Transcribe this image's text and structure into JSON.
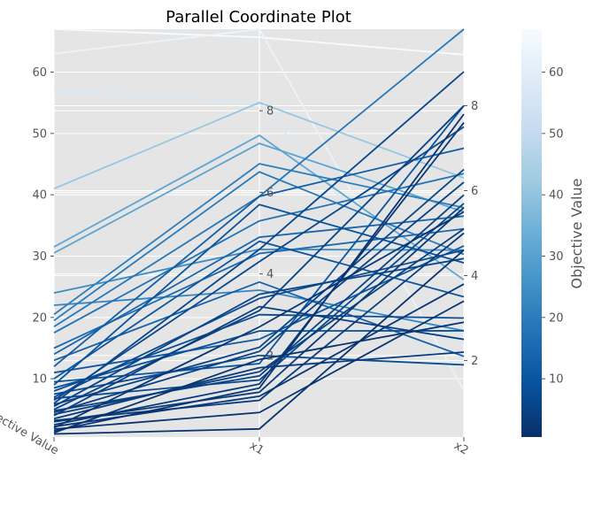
{
  "chart_data": {
    "type": "parallel_coordinates",
    "title": "Parallel Coordinate Plot",
    "axes": [
      {
        "name": "Objective Value",
        "range": [
          0.5,
          67
        ],
        "ticks": [
          10,
          20,
          30,
          40,
          50,
          60
        ],
        "tick_labels_side": "left"
      },
      {
        "name": "x1",
        "range": [
          0,
          10
        ],
        "ticks": [
          2,
          4,
          6,
          8
        ],
        "tick_labels_side": "right"
      },
      {
        "name": "x2",
        "range": [
          0.2,
          9.8
        ],
        "ticks": [
          2,
          4,
          6,
          8
        ],
        "tick_labels_side": "right"
      }
    ],
    "colorbar": {
      "label": "Objective Value",
      "range": [
        0.5,
        67
      ],
      "ticks": [
        10,
        20,
        30,
        40,
        50,
        60
      ],
      "colormap": "Blues_r"
    },
    "background": "#e5e5e5",
    "grid": true,
    "lines": [
      [
        67.0,
        9.8,
        9.2
      ],
      [
        63.0,
        10.0,
        1.3
      ],
      [
        57.0,
        8.2,
        2.4
      ],
      [
        41.0,
        8.2,
        6.3
      ],
      [
        31.5,
        7.4,
        3.9
      ],
      [
        30.5,
        7.2,
        5.5
      ],
      [
        24.0,
        4.6,
        4.6
      ],
      [
        22.0,
        3.6,
        2.7
      ],
      [
        20.5,
        6.7,
        5.6
      ],
      [
        19.5,
        6.5,
        4.5
      ],
      [
        18.5,
        5.9,
        9.8
      ],
      [
        17.5,
        5.3,
        6.4
      ],
      [
        15.0,
        4.5,
        5.1
      ],
      [
        14.0,
        4.9,
        5.4
      ],
      [
        13.0,
        3.8,
        2.1
      ],
      [
        12.0,
        5.9,
        7.0
      ],
      [
        10.0,
        4.8,
        3.5
      ],
      [
        9.0,
        5.7,
        4.3
      ],
      [
        8.0,
        3.0,
        3.0
      ],
      [
        7.0,
        3.4,
        4.6
      ],
      [
        6.5,
        4.3,
        7.5
      ],
      [
        6.0,
        4.6,
        8.8
      ],
      [
        5.5,
        3.5,
        4.4
      ],
      [
        5.0,
        3.1,
        8.0
      ],
      [
        4.5,
        2.1,
        6.2
      ],
      [
        4.0,
        3.2,
        2.5
      ],
      [
        3.5,
        1.7,
        2.2
      ],
      [
        3.0,
        1.1,
        5.6
      ],
      [
        2.5,
        1.3,
        7.6
      ],
      [
        2.0,
        2.7,
        5.5
      ],
      [
        1.8,
        0.6,
        3.4
      ],
      [
        1.5,
        1.2,
        7.8
      ],
      [
        1.2,
        1.9,
        2.9
      ],
      [
        1.0,
        0.2,
        4.6
      ],
      [
        11.0,
        2.4,
        4.7
      ],
      [
        9.5,
        1.8,
        8.0
      ],
      [
        7.5,
        2.0,
        1.9
      ],
      [
        5.8,
        2.2,
        6.5
      ],
      [
        4.8,
        1.5,
        5.9
      ],
      [
        3.2,
        0.9,
        5.0
      ],
      [
        2.2,
        1.0,
        3.8
      ],
      [
        8.5,
        2.6,
        2.7
      ],
      [
        6.8,
        1.4,
        5.7
      ],
      [
        4.2,
        1.6,
        5.1
      ]
    ]
  }
}
